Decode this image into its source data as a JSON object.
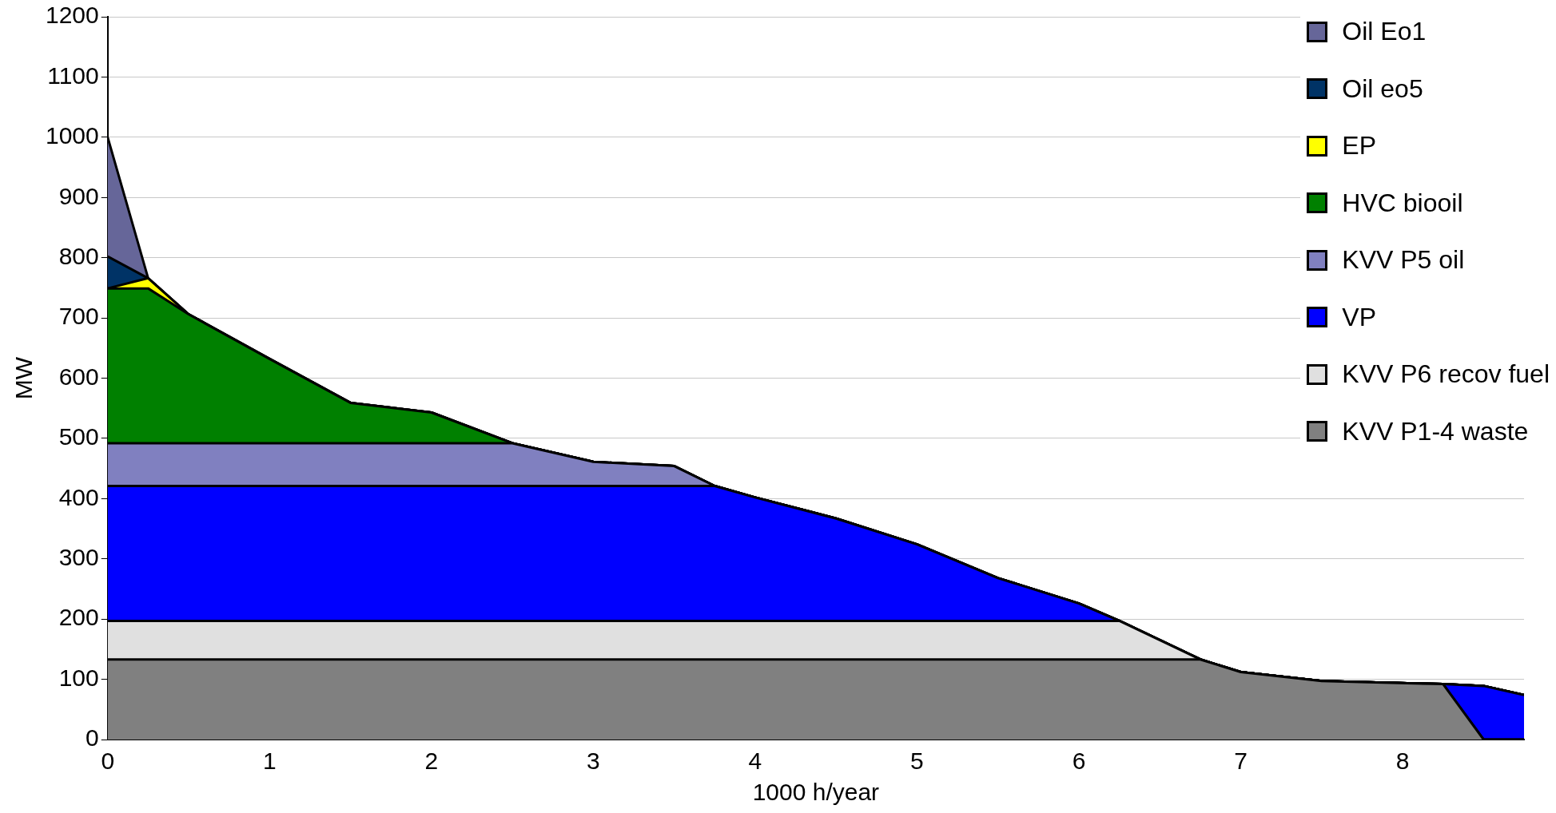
{
  "chart_data": {
    "type": "area",
    "stacked": true,
    "xlabel": "1000 h/year",
    "ylabel": "MW",
    "x": [
      0,
      0.25,
      0.5,
      1,
      1.5,
      2,
      2.5,
      3,
      3.5,
      3.75,
      4,
      4.5,
      5,
      5.5,
      6,
      6.25,
      6.75,
      7,
      7.5,
      8.25,
      8.5,
      8.75
    ],
    "xlim": [
      0,
      8.75
    ],
    "xticks": [
      0,
      1,
      2,
      3,
      4,
      5,
      6,
      7,
      8
    ],
    "ylim": [
      0,
      1200
    ],
    "yticks": [
      0,
      100,
      200,
      300,
      400,
      500,
      600,
      700,
      800,
      900,
      1000,
      1100,
      1200
    ],
    "grid": "y",
    "legend": "top right",
    "series": [
      {
        "name": "KVV P1-4 waste",
        "color": "#808080",
        "values": [
          133,
          133,
          133,
          133,
          133,
          133,
          133,
          133,
          133,
          133,
          133,
          133,
          133,
          133,
          133,
          133,
          133,
          112,
          97,
          92,
          0,
          0
        ]
      },
      {
        "name": "KVV P6 recov fuel",
        "color": "#e0e0e0",
        "values": [
          64,
          64,
          64,
          64,
          64,
          64,
          64,
          64,
          64,
          64,
          64,
          64,
          64,
          64,
          64,
          64,
          0,
          0,
          0,
          0,
          0,
          0
        ]
      },
      {
        "name": "VP",
        "color": "#0000ff",
        "values": [
          224,
          224,
          224,
          224,
          224,
          224,
          224,
          224,
          224,
          224,
          205,
          170,
          127,
          71,
          29,
          0,
          0,
          0,
          0,
          0,
          89,
          74
        ]
      },
      {
        "name": "KVV P5 oil",
        "color": "#8080c0",
        "values": [
          71,
          71,
          71,
          71,
          71,
          71,
          71,
          40,
          33,
          0,
          0,
          0,
          0,
          0,
          0,
          0,
          0,
          0,
          0,
          0,
          0,
          0
        ]
      },
      {
        "name": "HVC biooil",
        "color": "#008000",
        "values": [
          257,
          257,
          214,
          140,
          67,
          51,
          0,
          0,
          0,
          0,
          0,
          0,
          0,
          0,
          0,
          0,
          0,
          0,
          0,
          0,
          0,
          0
        ]
      },
      {
        "name": "EP",
        "color": "#ffff00",
        "values": [
          0,
          17,
          0,
          0,
          0,
          0,
          0,
          0,
          0,
          0,
          0,
          0,
          0,
          0,
          0,
          0,
          0,
          0,
          0,
          0,
          0,
          0
        ]
      },
      {
        "name": "Oil eo5",
        "color": "#003366",
        "values": [
          53,
          0,
          0,
          0,
          0,
          0,
          0,
          0,
          0,
          0,
          0,
          0,
          0,
          0,
          0,
          0,
          0,
          0,
          0,
          0,
          0,
          0
        ]
      },
      {
        "name": "Oil Eo1",
        "color": "#666699",
        "values": [
          198,
          0,
          0,
          0,
          0,
          0,
          0,
          0,
          0,
          0,
          0,
          0,
          0,
          0,
          0,
          0,
          0,
          0,
          0,
          0,
          0,
          0
        ]
      }
    ]
  }
}
